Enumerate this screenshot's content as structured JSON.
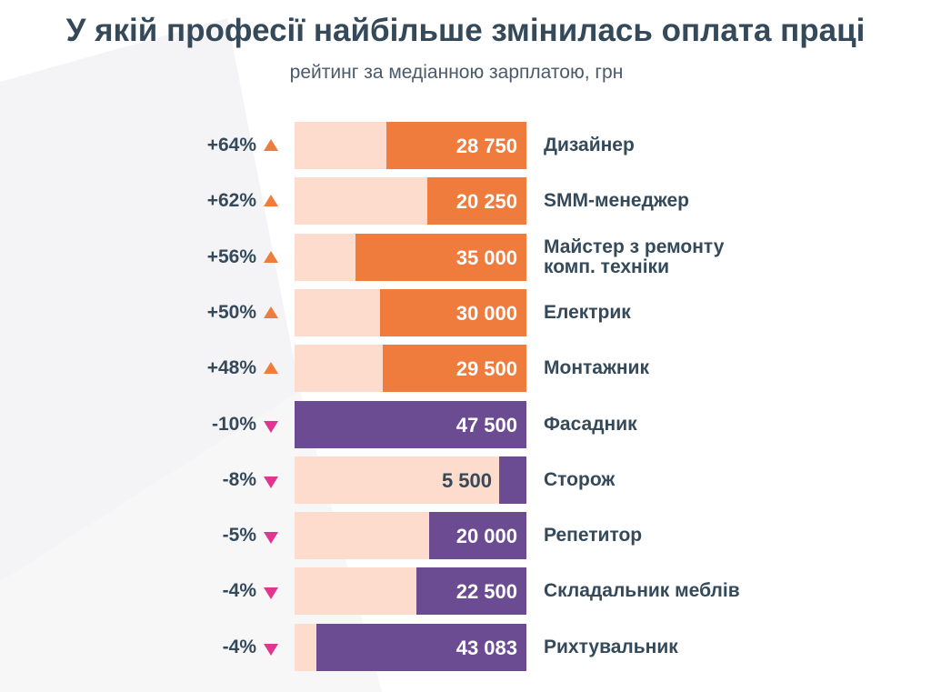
{
  "title": "У якій професії найбільше змінилась оплата праці",
  "subtitle": "рейтинг за медіанною зарплатою, грн",
  "colors": {
    "increase": "#ef7b3c",
    "decrease": "#6b4c92",
    "track": "#fddccd",
    "arrow_up": "#ef7b3c",
    "arrow_down": "#e3358f",
    "text": "#34495a"
  },
  "chart_data": {
    "type": "bar",
    "orientation": "horizontal",
    "title": "У якій професії найбільше змінилась оплата праці",
    "subtitle": "рейтинг за медіанною зарплатою, грн",
    "xlim": [
      0,
      47500
    ],
    "rows": [
      {
        "profession": "Дизайнер",
        "change": "+64%",
        "direction": "up",
        "salary": 28750,
        "salary_label": "28 750"
      },
      {
        "profession": "SMM-менеджер",
        "change": "+62%",
        "direction": "up",
        "salary": 20250,
        "salary_label": "20 250"
      },
      {
        "profession": "Майстер з ремонту комп. техніки",
        "change": "+56%",
        "direction": "up",
        "salary": 35000,
        "salary_label": "35 000"
      },
      {
        "profession": "Електрик",
        "change": "+50%",
        "direction": "up",
        "salary": 30000,
        "salary_label": "30 000"
      },
      {
        "profession": "Монтажник",
        "change": "+48%",
        "direction": "up",
        "salary": 29500,
        "salary_label": "29 500"
      },
      {
        "profession": "Фасадник",
        "change": "-10%",
        "direction": "down",
        "salary": 47500,
        "salary_label": "47 500"
      },
      {
        "profession": "Сторож",
        "change": "-8%",
        "direction": "down",
        "salary": 5500,
        "salary_label": "5 500"
      },
      {
        "profession": "Репетитор",
        "change": "-5%",
        "direction": "down",
        "salary": 20000,
        "salary_label": "20 000"
      },
      {
        "profession": "Складальник меблів",
        "change": "-4%",
        "direction": "down",
        "salary": 22500,
        "salary_label": "22 500"
      },
      {
        "profession": "Рихтувальник",
        "change": "-4%",
        "direction": "down",
        "salary": 43083,
        "salary_label": "43 083"
      }
    ]
  }
}
